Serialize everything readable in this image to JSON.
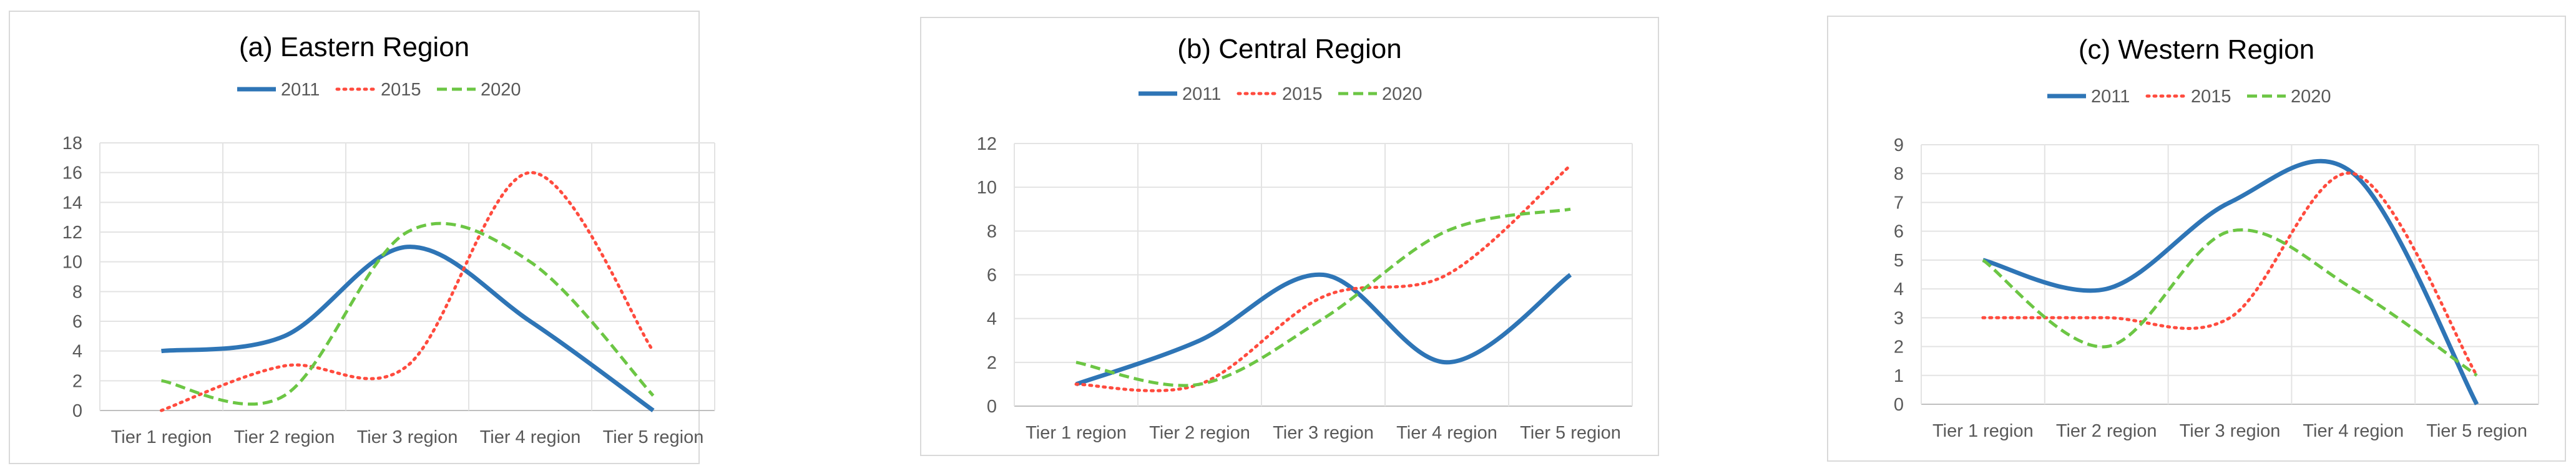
{
  "chart_data": [
    {
      "type": "line",
      "title": "(a) Eastern Region",
      "categories": [
        "Tier 1 region",
        "Tier 2 region",
        "Tier 3 region",
        "Tier 4 region",
        "Tier 5 region"
      ],
      "ylim": [
        0,
        18
      ],
      "yticks": [
        0,
        2,
        4,
        6,
        8,
        10,
        12,
        14,
        16,
        18
      ],
      "grid": true,
      "legend_position": "top",
      "series": [
        {
          "name": "2011",
          "values": [
            4,
            5,
            11,
            6,
            0
          ],
          "color": "#2e75b6",
          "style": "solid"
        },
        {
          "name": "2015",
          "values": [
            0,
            3,
            3,
            16,
            4
          ],
          "color": "#ff4b3e",
          "style": "dotted"
        },
        {
          "name": "2020",
          "values": [
            2,
            1,
            12,
            10,
            1
          ],
          "color": "#6cc644",
          "style": "dashed"
        }
      ]
    },
    {
      "type": "line",
      "title": "(b) Central Region",
      "categories": [
        "Tier 1 region",
        "Tier 2 region",
        "Tier 3 region",
        "Tier 4 region",
        "Tier 5 region"
      ],
      "ylim": [
        0,
        12
      ],
      "yticks": [
        0,
        2,
        4,
        6,
        8,
        10,
        12
      ],
      "grid": true,
      "legend_position": "top",
      "series": [
        {
          "name": "2011",
          "values": [
            1,
            3,
            6,
            2,
            6
          ],
          "color": "#2e75b6",
          "style": "solid"
        },
        {
          "name": "2015",
          "values": [
            1,
            1,
            5,
            6,
            11
          ],
          "color": "#ff4b3e",
          "style": "dotted"
        },
        {
          "name": "2020",
          "values": [
            2,
            1,
            4,
            8,
            9
          ],
          "color": "#6cc644",
          "style": "dashed"
        }
      ]
    },
    {
      "type": "line",
      "title": "(c) Western Region",
      "categories": [
        "Tier 1 region",
        "Tier 2 region",
        "Tier 3 region",
        "Tier 4 region",
        "Tier 5 region"
      ],
      "ylim": [
        0,
        9
      ],
      "yticks": [
        0,
        1,
        2,
        3,
        4,
        5,
        6,
        7,
        8,
        9
      ],
      "grid": true,
      "legend_position": "top",
      "series": [
        {
          "name": "2011",
          "values": [
            5,
            4,
            7,
            8,
            0
          ],
          "color": "#2e75b6",
          "style": "solid"
        },
        {
          "name": "2015",
          "values": [
            3,
            3,
            3,
            8,
            1
          ],
          "color": "#ff4b3e",
          "style": "dotted"
        },
        {
          "name": "2020",
          "values": [
            5,
            2,
            6,
            4,
            1
          ],
          "color": "#6cc644",
          "style": "dashed"
        }
      ]
    }
  ]
}
